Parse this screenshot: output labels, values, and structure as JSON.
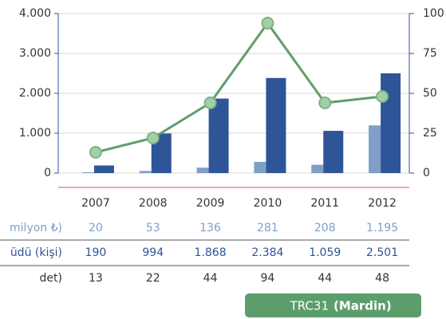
{
  "chart_data": {
    "type": "bar",
    "categories": [
      "2007",
      "2008",
      "2009",
      "2010",
      "2011",
      "2012"
    ],
    "series": [
      {
        "name": "milyon ₺)",
        "color": "#7f9fc8",
        "values": [
          20,
          53,
          136,
          281,
          208,
          1195
        ],
        "value_labels": [
          "20",
          "53",
          "136",
          "281",
          "208",
          "1.195"
        ]
      },
      {
        "name": "üdü (kişi)",
        "color": "#2e5597",
        "values": [
          190,
          994,
          1868,
          2384,
          1059,
          2501
        ],
        "value_labels": [
          "190",
          "994",
          "1.868",
          "2.384",
          "1.059",
          "2.501"
        ]
      },
      {
        "name": "det)",
        "color": "#5e9e6a",
        "type": "line",
        "axis": "y2",
        "values": [
          13,
          22,
          44,
          94,
          44,
          48
        ]
      }
    ],
    "ylim": [
      0,
      4000
    ],
    "yticks": [
      0,
      {
        "value": 1000,
        "label": "1.000"
      },
      {
        "value": 2000,
        "label": "2.000"
      },
      {
        "value": 3000,
        "label": "3.000"
      },
      {
        "value": 4000,
        "label": "4.000"
      }
    ],
    "y2lim": [
      0,
      100
    ],
    "y2ticks": [
      0,
      25,
      50,
      75,
      100
    ],
    "grid": true,
    "badge": {
      "code": "TRC31",
      "name": "(Mardin)"
    }
  }
}
